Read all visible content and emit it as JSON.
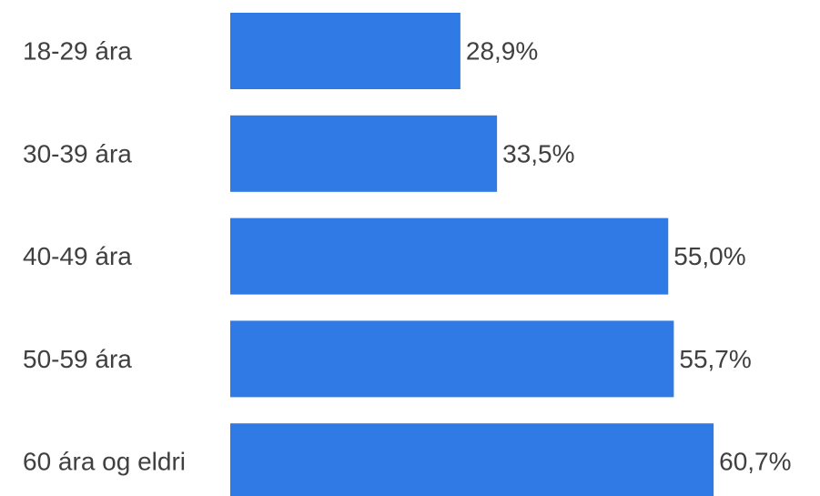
{
  "colors": {
    "bar": "#2f7ae5",
    "text": "#404040",
    "background": "#ffffff"
  },
  "chart_data": {
    "type": "bar",
    "orientation": "horizontal",
    "categories": [
      "18-29 ára",
      "30-39 ára",
      "40-49 ára",
      "50-59 ára",
      "60 ára og eldri"
    ],
    "values": [
      28.9,
      33.5,
      55.0,
      55.7,
      60.7
    ],
    "value_labels": [
      "28,9%",
      "33,5%",
      "55,0%",
      "55,7%",
      "60,7%"
    ],
    "xlim": [
      0,
      100
    ],
    "grid": false,
    "legend": "none"
  }
}
